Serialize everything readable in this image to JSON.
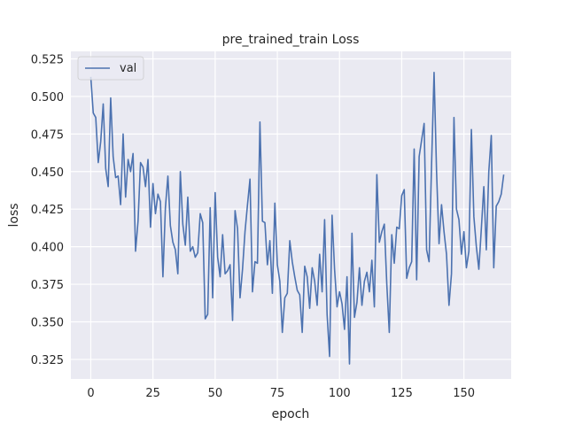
{
  "chart_data": {
    "type": "line",
    "title": "pre_trained_train Loss",
    "xlabel": "epoch",
    "ylabel": "loss",
    "xlim": [
      -8,
      169
    ],
    "ylim": [
      0.312,
      0.53
    ],
    "xticks": [
      0,
      25,
      50,
      75,
      100,
      125,
      150
    ],
    "yticks": [
      0.325,
      0.35,
      0.375,
      0.4,
      0.425,
      0.45,
      0.475,
      0.5,
      0.525
    ],
    "xtick_labels": [
      "0",
      "25",
      "50",
      "75",
      "100",
      "125",
      "150"
    ],
    "ytick_labels": [
      "0.325",
      "0.350",
      "0.375",
      "0.400",
      "0.425",
      "0.450",
      "0.475",
      "0.500",
      "0.525"
    ],
    "grid": true,
    "legend_position": "top-left",
    "series": [
      {
        "name": "val",
        "color": "#4c72b0",
        "values": [
          0.513,
          0.489,
          0.486,
          0.456,
          0.47,
          0.495,
          0.452,
          0.44,
          0.499,
          0.46,
          0.446,
          0.447,
          0.428,
          0.475,
          0.433,
          0.458,
          0.45,
          0.462,
          0.397,
          0.417,
          0.456,
          0.453,
          0.44,
          0.458,
          0.413,
          0.442,
          0.422,
          0.435,
          0.43,
          0.38,
          0.426,
          0.447,
          0.414,
          0.403,
          0.398,
          0.382,
          0.45,
          0.415,
          0.401,
          0.433,
          0.397,
          0.4,
          0.393,
          0.396,
          0.422,
          0.416,
          0.352,
          0.355,
          0.426,
          0.366,
          0.436,
          0.393,
          0.38,
          0.408,
          0.382,
          0.384,
          0.388,
          0.351,
          0.424,
          0.412,
          0.366,
          0.385,
          0.41,
          0.428,
          0.445,
          0.37,
          0.39,
          0.389,
          0.483,
          0.417,
          0.416,
          0.388,
          0.404,
          0.369,
          0.429,
          0.388,
          0.377,
          0.343,
          0.366,
          0.369,
          0.404,
          0.39,
          0.38,
          0.371,
          0.368,
          0.343,
          0.387,
          0.38,
          0.359,
          0.386,
          0.377,
          0.361,
          0.395,
          0.37,
          0.418,
          0.355,
          0.327,
          0.421,
          0.385,
          0.36,
          0.37,
          0.362,
          0.345,
          0.38,
          0.322,
          0.409,
          0.353,
          0.363,
          0.386,
          0.361,
          0.377,
          0.383,
          0.37,
          0.391,
          0.36,
          0.448,
          0.403,
          0.41,
          0.415,
          0.375,
          0.343,
          0.408,
          0.389,
          0.413,
          0.412,
          0.434,
          0.438,
          0.379,
          0.386,
          0.39,
          0.465,
          0.378,
          0.46,
          0.471,
          0.482,
          0.398,
          0.39,
          0.455,
          0.516,
          0.45,
          0.402,
          0.428,
          0.41,
          0.395,
          0.361,
          0.382,
          0.486,
          0.425,
          0.418,
          0.395,
          0.41,
          0.386,
          0.397,
          0.478,
          0.42,
          0.4,
          0.385,
          0.412,
          0.44,
          0.398,
          0.45,
          0.474,
          0.386,
          0.427,
          0.43,
          0.435,
          0.448
        ]
      }
    ]
  }
}
